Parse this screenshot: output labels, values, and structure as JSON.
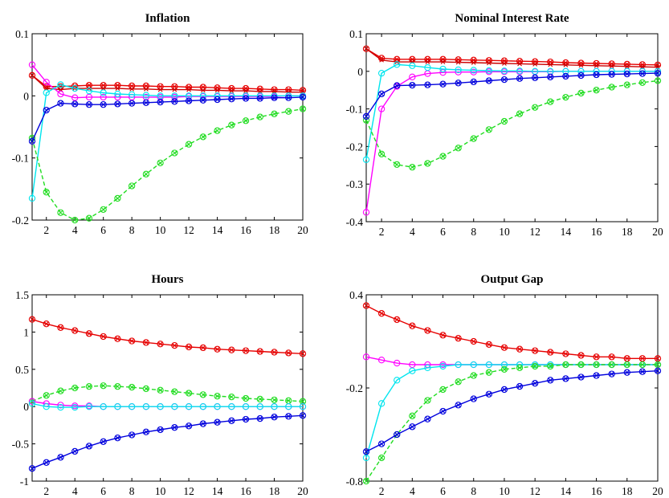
{
  "chart_data": [
    {
      "type": "line",
      "title": "Inflation",
      "xlabel": "",
      "ylabel": "",
      "xlim": [
        1,
        20
      ],
      "ylim": [
        -0.2,
        0.1
      ],
      "xticks": [
        2,
        4,
        6,
        8,
        10,
        12,
        14,
        16,
        18,
        20
      ],
      "yticks": [
        -0.2,
        -0.1,
        0,
        0.1
      ],
      "ytick_labels": [
        "-0.2",
        "-0.1",
        "0",
        "0.1"
      ],
      "grid": false,
      "x": [
        1,
        2,
        3,
        4,
        5,
        6,
        7,
        8,
        9,
        10,
        11,
        12,
        13,
        14,
        15,
        16,
        17,
        18,
        19,
        20
      ],
      "series": [
        {
          "color": "#e60000",
          "marker": "circle-x",
          "values": [
            0.033,
            0.015,
            0.015,
            0.016,
            0.017,
            0.017,
            0.017,
            0.016,
            0.016,
            0.015,
            0.015,
            0.014,
            0.014,
            0.013,
            0.012,
            0.012,
            0.011,
            0.01,
            0.01,
            0.009
          ]
        },
        {
          "color": "#cc0000",
          "marker": "x",
          "values": [
            0.033,
            0.012,
            0.01,
            0.012,
            0.012,
            0.012,
            0.012,
            0.011,
            0.011,
            0.01,
            0.01,
            0.01,
            0.009,
            0.009,
            0.008,
            0.008,
            0.007,
            0.007,
            0.006,
            0.006
          ]
        },
        {
          "color": "#ff00ff",
          "marker": "circle",
          "values": [
            0.05,
            0.022,
            0.003,
            -0.003,
            -0.002,
            -0.002,
            -0.002,
            -0.002,
            -0.002,
            -0.002,
            -0.002,
            -0.001,
            -0.001,
            -0.001,
            -0.001,
            -0.001,
            -0.001,
            -0.001,
            0.0,
            0.0
          ]
        },
        {
          "color": "#00e5ee",
          "marker": "circle",
          "values": [
            -0.165,
            0.005,
            0.018,
            0.012,
            0.008,
            0.005,
            0.003,
            0.002,
            0.001,
            0.0,
            0.0,
            0.0,
            0.0,
            0.0,
            0.0,
            0.0,
            0.0,
            0.0,
            0.0,
            0.0
          ]
        },
        {
          "color": "#22dd22",
          "marker": "circle-x",
          "dashed": true,
          "values": [
            -0.068,
            -0.155,
            -0.188,
            -0.2,
            -0.197,
            -0.183,
            -0.165,
            -0.145,
            -0.126,
            -0.108,
            -0.092,
            -0.078,
            -0.066,
            -0.056,
            -0.047,
            -0.04,
            -0.034,
            -0.029,
            -0.025,
            -0.021
          ]
        },
        {
          "color": "#0000dd",
          "marker": "circle-x",
          "values": [
            -0.073,
            -0.023,
            -0.012,
            -0.013,
            -0.014,
            -0.014,
            -0.013,
            -0.012,
            -0.011,
            -0.01,
            -0.009,
            -0.008,
            -0.007,
            -0.006,
            -0.005,
            -0.004,
            -0.004,
            -0.003,
            -0.003,
            -0.002
          ]
        }
      ]
    },
    {
      "type": "line",
      "title": "Nominal Interest Rate",
      "xlabel": "",
      "ylabel": "",
      "xlim": [
        1,
        20
      ],
      "ylim": [
        -0.4,
        0.1
      ],
      "xticks": [
        2,
        4,
        6,
        8,
        10,
        12,
        14,
        16,
        18,
        20
      ],
      "yticks": [
        -0.4,
        -0.3,
        -0.2,
        -0.1,
        0,
        0.1
      ],
      "ytick_labels": [
        "-0.4",
        "-0.3",
        "-0.2",
        "-0.1",
        "0",
        "0.1"
      ],
      "grid": false,
      "x": [
        1,
        2,
        3,
        4,
        5,
        6,
        7,
        8,
        9,
        10,
        11,
        12,
        13,
        14,
        15,
        16,
        17,
        18,
        19,
        20
      ],
      "series": [
        {
          "color": "#e60000",
          "marker": "circle-x",
          "values": [
            0.06,
            0.035,
            0.032,
            0.032,
            0.032,
            0.032,
            0.031,
            0.03,
            0.029,
            0.028,
            0.027,
            0.026,
            0.025,
            0.023,
            0.022,
            0.021,
            0.02,
            0.019,
            0.018,
            0.017
          ]
        },
        {
          "color": "#cc0000",
          "marker": "x",
          "values": [
            0.06,
            0.03,
            0.025,
            0.025,
            0.025,
            0.025,
            0.024,
            0.023,
            0.022,
            0.021,
            0.02,
            0.019,
            0.018,
            0.017,
            0.016,
            0.015,
            0.014,
            0.013,
            0.012,
            0.011
          ]
        },
        {
          "color": "#ff00ff",
          "marker": "circle",
          "values": [
            -0.375,
            -0.1,
            -0.04,
            -0.015,
            -0.006,
            -0.003,
            -0.002,
            -0.002,
            -0.001,
            -0.001,
            -0.001,
            -0.001,
            -0.001,
            0.0,
            0.0,
            0.0,
            0.0,
            0.0,
            0.0,
            0.0
          ]
        },
        {
          "color": "#00e5ee",
          "marker": "circle",
          "values": [
            -0.235,
            -0.005,
            0.018,
            0.015,
            0.01,
            0.006,
            0.004,
            0.003,
            0.002,
            0.001,
            0.001,
            0.0,
            0.0,
            0.0,
            0.0,
            0.0,
            0.0,
            0.0,
            0.0,
            0.0
          ]
        },
        {
          "color": "#22dd22",
          "marker": "circle-x",
          "dashed": true,
          "values": [
            -0.13,
            -0.22,
            -0.248,
            -0.255,
            -0.245,
            -0.226,
            -0.204,
            -0.179,
            -0.155,
            -0.133,
            -0.113,
            -0.096,
            -0.081,
            -0.069,
            -0.058,
            -0.05,
            -0.042,
            -0.036,
            -0.03,
            -0.025
          ]
        },
        {
          "color": "#0000dd",
          "marker": "circle-x",
          "values": [
            -0.12,
            -0.06,
            -0.038,
            -0.037,
            -0.036,
            -0.034,
            -0.031,
            -0.028,
            -0.025,
            -0.022,
            -0.019,
            -0.017,
            -0.015,
            -0.013,
            -0.011,
            -0.009,
            -0.008,
            -0.007,
            -0.006,
            -0.005
          ]
        }
      ]
    },
    {
      "type": "line",
      "title": "Hours",
      "xlabel": "",
      "ylabel": "",
      "xlim": [
        1,
        20
      ],
      "ylim": [
        -1,
        1.5
      ],
      "xticks": [
        2,
        4,
        6,
        8,
        10,
        12,
        14,
        16,
        18,
        20
      ],
      "yticks": [
        -1,
        -0.5,
        0,
        0.5,
        1,
        1.5
      ],
      "ytick_labels": [
        "-1",
        "-0.5",
        "0",
        "0.5",
        "1",
        "1.5"
      ],
      "grid": false,
      "x": [
        1,
        2,
        3,
        4,
        5,
        6,
        7,
        8,
        9,
        10,
        11,
        12,
        13,
        14,
        15,
        16,
        17,
        18,
        19,
        20
      ],
      "series": [
        {
          "color": "#e60000",
          "marker": "circle-x",
          "values": [
            1.17,
            1.11,
            1.06,
            1.02,
            0.98,
            0.94,
            0.91,
            0.88,
            0.86,
            0.84,
            0.82,
            0.8,
            0.79,
            0.77,
            0.76,
            0.75,
            0.74,
            0.73,
            0.72,
            0.71
          ]
        },
        {
          "color": "#22dd22",
          "marker": "circle-x",
          "dashed": true,
          "values": [
            0.07,
            0.15,
            0.21,
            0.25,
            0.27,
            0.28,
            0.27,
            0.26,
            0.24,
            0.22,
            0.2,
            0.18,
            0.16,
            0.14,
            0.13,
            0.11,
            0.1,
            0.09,
            0.08,
            0.07
          ]
        },
        {
          "color": "#ff00ff",
          "marker": "circle",
          "values": [
            0.07,
            0.04,
            0.02,
            0.01,
            0.01,
            0.0,
            0.0,
            0.0,
            0.0,
            0.0,
            0.0,
            0.0,
            0.0,
            0.0,
            0.0,
            0.0,
            0.0,
            0.0,
            0.0,
            0.0
          ]
        },
        {
          "color": "#00e5ee",
          "marker": "circle",
          "values": [
            0.04,
            0.0,
            -0.01,
            -0.01,
            0.0,
            0.0,
            0.0,
            0.0,
            0.0,
            0.0,
            0.0,
            0.0,
            0.0,
            0.0,
            0.0,
            0.0,
            0.0,
            0.0,
            0.0,
            0.0
          ]
        },
        {
          "color": "#0000dd",
          "marker": "circle-x",
          "values": [
            -0.83,
            -0.75,
            -0.68,
            -0.6,
            -0.53,
            -0.47,
            -0.42,
            -0.38,
            -0.34,
            -0.31,
            -0.28,
            -0.26,
            -0.23,
            -0.21,
            -0.19,
            -0.17,
            -0.16,
            -0.14,
            -0.13,
            -0.12
          ]
        }
      ]
    },
    {
      "type": "line",
      "title": "Output Gap",
      "xlabel": "",
      "ylabel": "",
      "xlim": [
        1,
        20
      ],
      "ylim": [
        -0.8,
        0.4
      ],
      "xticks": [
        2,
        4,
        6,
        8,
        10,
        12,
        14,
        16,
        18,
        20
      ],
      "yticks": [
        -0.8,
        -0.2,
        0.4
      ],
      "ytick_labels": [
        "-0.8",
        "-0.2",
        "0.4"
      ],
      "grid": false,
      "x": [
        1,
        2,
        3,
        4,
        5,
        6,
        7,
        8,
        9,
        10,
        11,
        12,
        13,
        14,
        15,
        16,
        17,
        18,
        19,
        20
      ],
      "series": [
        {
          "color": "#e60000",
          "marker": "circle-x",
          "values": [
            0.33,
            0.28,
            0.24,
            0.2,
            0.17,
            0.14,
            0.12,
            0.1,
            0.08,
            0.06,
            0.05,
            0.04,
            0.03,
            0.02,
            0.01,
            0.0,
            0.0,
            -0.01,
            -0.01,
            -0.01
          ]
        },
        {
          "color": "#ff00ff",
          "marker": "circle",
          "values": [
            0.0,
            -0.02,
            -0.04,
            -0.05,
            -0.05,
            -0.05,
            -0.05,
            -0.05,
            -0.05,
            -0.05,
            -0.05,
            -0.05,
            -0.05,
            -0.05,
            -0.05,
            -0.05,
            -0.05,
            -0.05,
            -0.05,
            -0.05
          ]
        },
        {
          "color": "#00e5ee",
          "marker": "circle",
          "values": [
            -0.65,
            -0.3,
            -0.15,
            -0.09,
            -0.07,
            -0.06,
            -0.05,
            -0.05,
            -0.05,
            -0.05,
            -0.05,
            -0.05,
            -0.05,
            -0.05,
            -0.05,
            -0.05,
            -0.05,
            -0.05,
            -0.05,
            -0.05
          ]
        },
        {
          "color": "#22dd22",
          "marker": "circle-x",
          "dashed": true,
          "values": [
            -0.8,
            -0.65,
            -0.5,
            -0.38,
            -0.28,
            -0.21,
            -0.16,
            -0.12,
            -0.1,
            -0.08,
            -0.07,
            -0.06,
            -0.06,
            -0.05,
            -0.05,
            -0.05,
            -0.05,
            -0.05,
            -0.05,
            -0.05
          ]
        },
        {
          "color": "#0000dd",
          "marker": "circle-x",
          "values": [
            -0.61,
            -0.56,
            -0.5,
            -0.45,
            -0.4,
            -0.35,
            -0.31,
            -0.27,
            -0.24,
            -0.21,
            -0.19,
            -0.17,
            -0.15,
            -0.14,
            -0.13,
            -0.12,
            -0.11,
            -0.1,
            -0.095,
            -0.09
          ]
        }
      ]
    }
  ]
}
